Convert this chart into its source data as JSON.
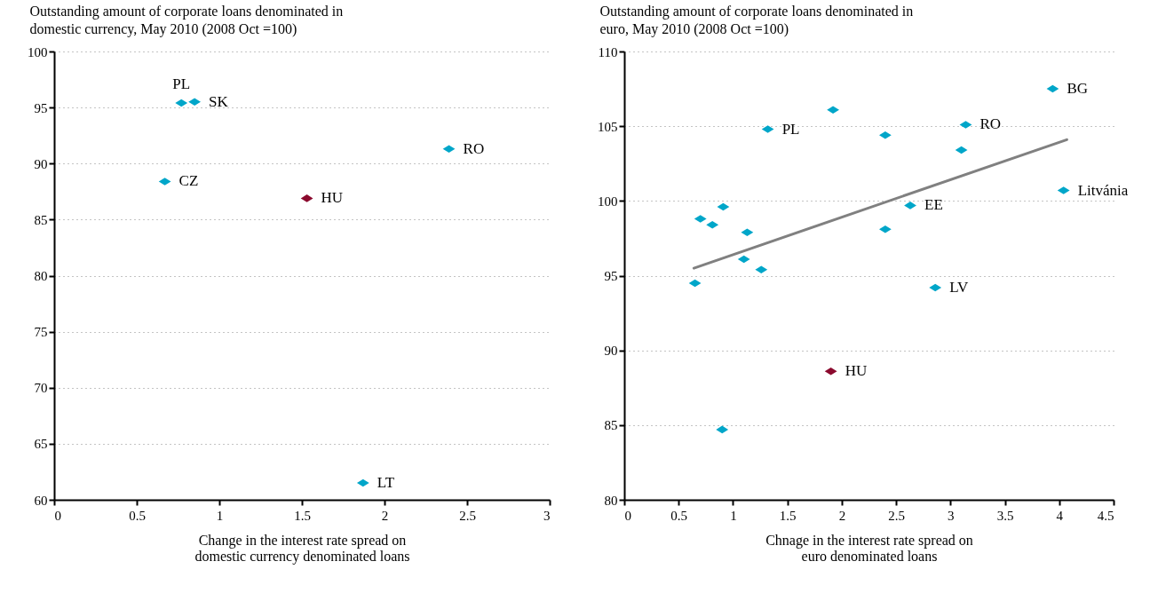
{
  "chart_data": [
    {
      "type": "scatter",
      "ylabel": "Outstanding amount of corporate loans denominated in domestic currency, May 2010 (2008 Oct =100)",
      "xlabel": "Change in the interest rate spread on domestic currency denominated loans",
      "xlim": [
        0,
        3
      ],
      "xticks": [
        0,
        0.5,
        1,
        1.5,
        2,
        2.5,
        3
      ],
      "ylim": [
        60,
        100
      ],
      "yticks": [
        60,
        65,
        70,
        75,
        80,
        85,
        90,
        95,
        100
      ],
      "grid": "y",
      "marker": "diamond",
      "series": [
        {
          "x": [
            0.77,
            0.85,
            0.67,
            1.53,
            2.39,
            1.87
          ],
          "values": [
            95.4,
            95.5,
            88.4,
            86.9,
            91.3,
            61.5
          ],
          "colors": [
            "#00a6c9",
            "#00a6c9",
            "#00a6c9",
            "#8b0a2e",
            "#00a6c9",
            "#00a6c9"
          ]
        }
      ],
      "annotations": [
        {
          "text": "PL",
          "x": 0.77,
          "y": 95.4
        },
        {
          "text": "SK",
          "x": 0.85,
          "y": 95.5
        },
        {
          "text": "CZ",
          "x": 0.67,
          "y": 88.4
        },
        {
          "text": "HU",
          "x": 1.53,
          "y": 86.9
        },
        {
          "text": "RO",
          "x": 2.39,
          "y": 91.3
        },
        {
          "text": "LT",
          "x": 1.87,
          "y": 61.5
        }
      ]
    },
    {
      "type": "scatter",
      "ylabel": "Outstanding amount of corporate loans denominated in euro, May 2010 (2008 Oct =100)",
      "xlabel": "Chnage in the interest rate spread on euro denominated loans",
      "xlim": [
        0,
        4.5
      ],
      "xticks": [
        0,
        0.5,
        1,
        1.5,
        2,
        2.5,
        3,
        3.5,
        4,
        4.5
      ],
      "ylim": [
        80,
        110
      ],
      "yticks": [
        80,
        85,
        90,
        95,
        100,
        105,
        110
      ],
      "grid": "y",
      "marker": "diamond",
      "series": [
        {
          "x": [
            3.94,
            1.92,
            1.32,
            2.4,
            3.14,
            3.1,
            4.04,
            2.63,
            0.91,
            0.7,
            0.81,
            1.13,
            2.4,
            1.1,
            1.26,
            0.65,
            2.86,
            1.9,
            0.9
          ],
          "values": [
            107.5,
            106.1,
            104.8,
            104.4,
            105.1,
            103.4,
            100.7,
            99.7,
            99.6,
            98.8,
            98.4,
            97.9,
            98.1,
            96.1,
            95.4,
            94.5,
            94.2,
            88.6,
            84.7
          ],
          "colors": [
            "#00a6c9",
            "#00a6c9",
            "#00a6c9",
            "#00a6c9",
            "#00a6c9",
            "#00a6c9",
            "#00a6c9",
            "#00a6c9",
            "#00a6c9",
            "#00a6c9",
            "#00a6c9",
            "#00a6c9",
            "#00a6c9",
            "#00a6c9",
            "#00a6c9",
            "#00a6c9",
            "#00a6c9",
            "#8b0a2e",
            "#00a6c9"
          ]
        },
        {
          "type": "line",
          "x": [
            0.64,
            4.07
          ],
          "values": [
            95.5,
            104.1
          ],
          "color": "#808080",
          "marker": "none"
        }
      ],
      "annotations": [
        {
          "text": "BG",
          "x": 3.94,
          "y": 107.5
        },
        {
          "text": "PL",
          "x": 1.32,
          "y": 104.8
        },
        {
          "text": "RO",
          "x": 3.14,
          "y": 105.1
        },
        {
          "text": "Litvánia",
          "x": 4.04,
          "y": 100.7
        },
        {
          "text": "EE",
          "x": 2.63,
          "y": 99.7
        },
        {
          "text": "LV",
          "x": 2.86,
          "y": 94.2
        },
        {
          "text": "HU",
          "x": 1.9,
          "y": 88.6
        }
      ]
    }
  ]
}
